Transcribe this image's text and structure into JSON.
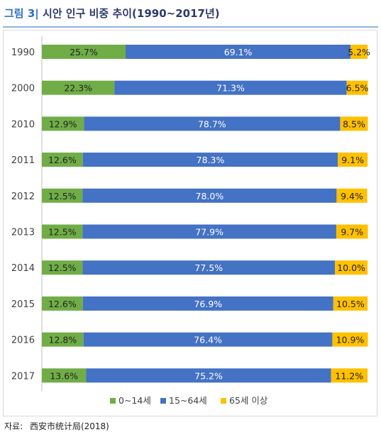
{
  "figure": {
    "number": "그림 3|",
    "title": "시안 인구 비중 추이(1990~2017년)"
  },
  "source": {
    "label": "자료:",
    "text": "西安市统计局(2018)"
  },
  "colors": {
    "age_0_14": "#70ad47",
    "age_15_64": "#4472c4",
    "age_65_plus": "#ffc000"
  },
  "chart_data": {
    "type": "bar",
    "orientation": "horizontal",
    "stacked": "percent",
    "categories": [
      "1990",
      "2000",
      "2010",
      "2011",
      "2012",
      "2013",
      "2014",
      "2015",
      "2016",
      "2017"
    ],
    "series": [
      {
        "name": "0~14세",
        "values": [
          25.7,
          22.3,
          12.9,
          12.6,
          12.5,
          12.5,
          12.5,
          12.6,
          12.8,
          13.6
        ]
      },
      {
        "name": "15~64세",
        "values": [
          69.1,
          71.3,
          78.7,
          78.3,
          78.0,
          77.9,
          77.5,
          76.9,
          76.4,
          75.2
        ]
      },
      {
        "name": "65세 이상",
        "values": [
          5.2,
          6.5,
          8.5,
          9.1,
          9.4,
          9.7,
          10.0,
          10.5,
          10.9,
          11.2
        ]
      }
    ],
    "data_labels": [
      [
        "25.7%",
        "22.3%",
        "12.9%",
        "12.6%",
        "12.5%",
        "12.5%",
        "12.5%",
        "12.6%",
        "12.8%",
        "13.6%"
      ],
      [
        "69.1%",
        "71.3%",
        "78.7%",
        "78.3%",
        "78.0%",
        "77.9%",
        "77.5%",
        "76.9%",
        "76.4%",
        "75.2%"
      ],
      [
        "5.2%",
        "6.5%",
        "8.5%",
        "9.1%",
        "9.4%",
        "9.7%",
        "10.0%",
        "10.5%",
        "10.9%",
        "11.2%"
      ]
    ],
    "xlim": [
      0,
      100
    ],
    "grid": false,
    "legend": "bottom"
  }
}
